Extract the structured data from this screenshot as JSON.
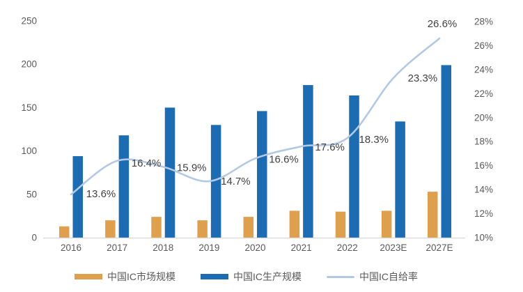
{
  "chart_data": {
    "type": "bar",
    "subtype": "grouped-bars-with-line-overlay",
    "categories": [
      "2016",
      "2017",
      "2018",
      "2019",
      "2020",
      "2021",
      "2022",
      "2023E",
      "2027E"
    ],
    "series": [
      {
        "name": "中国IC市场规模",
        "type": "bar",
        "axis": "left",
        "color": "#DFA04E",
        "values": [
          13,
          20,
          24,
          20,
          24,
          31,
          30,
          31,
          53
        ]
      },
      {
        "name": "中国IC生产规模",
        "type": "bar",
        "axis": "left",
        "color": "#1C6CB4",
        "values": [
          94,
          118,
          150,
          130,
          146,
          176,
          164,
          134,
          199
        ]
      },
      {
        "name": "中国IC自给率",
        "type": "line",
        "axis": "right",
        "color": "#B3C9E3",
        "values": [
          13.6,
          16.4,
          15.9,
          14.7,
          16.6,
          17.6,
          18.3,
          23.3,
          26.6
        ],
        "point_labels": [
          "13.6%",
          "16.4%",
          "15.9%",
          "14.7%",
          "16.6%",
          "17.6%",
          "18.3%",
          "23.3%",
          "26.6%"
        ],
        "label_offsets": [
          [
            43,
            -1
          ],
          [
            42,
            3
          ],
          [
            41,
            1
          ],
          [
            38,
            0
          ],
          [
            41,
            1
          ],
          [
            41,
            1
          ],
          [
            38,
            2
          ],
          [
            42,
            0
          ],
          [
            4,
            -21
          ]
        ]
      }
    ],
    "left_axis": {
      "min": 0,
      "max": 250,
      "tick_labels": [
        "0",
        "50",
        "100",
        "150",
        "200",
        "250"
      ],
      "tick_values": [
        0,
        50,
        100,
        150,
        200,
        250
      ]
    },
    "right_axis": {
      "min": 10,
      "max": 28,
      "tick_labels": [
        "10%",
        "12%",
        "14%",
        "16%",
        "18%",
        "20%",
        "22%",
        "24%",
        "26%",
        "28%"
      ],
      "tick_values": [
        10,
        12,
        14,
        16,
        18,
        20,
        22,
        24,
        26,
        28
      ]
    },
    "legend_position": "bottom",
    "grid": "off",
    "title": "",
    "colors": {
      "axis_line": "#D9D9D9",
      "tick_text": "#595959",
      "data_label_text": "#404040"
    }
  }
}
